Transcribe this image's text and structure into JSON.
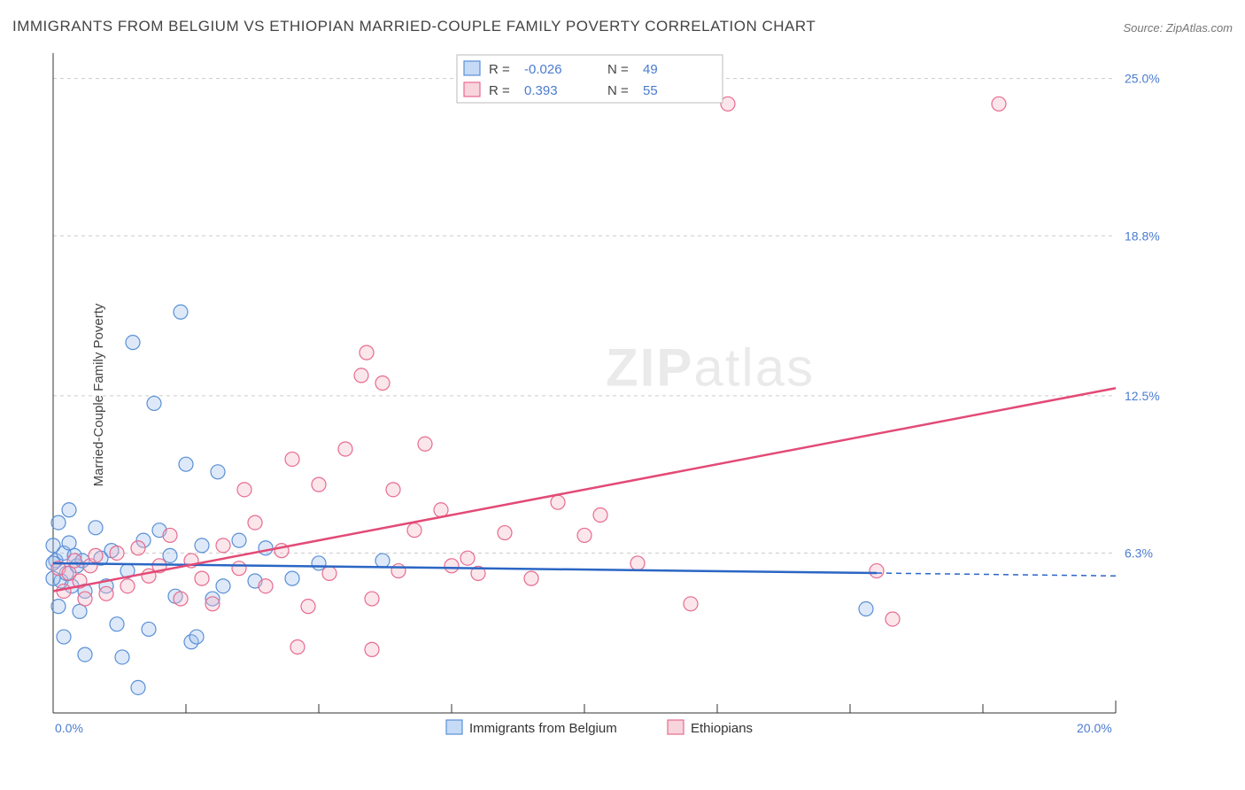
{
  "title": "IMMIGRANTS FROM BELGIUM VS ETHIOPIAN MARRIED-COUPLE FAMILY POVERTY CORRELATION CHART",
  "source_label": "Source: ZipAtlas.com",
  "ylabel": "Married-Couple Family Poverty",
  "watermark": "ZIPatlas",
  "chart": {
    "type": "scatter",
    "xlim": [
      0,
      20
    ],
    "ylim": [
      0,
      26
    ],
    "background_color": "#ffffff",
    "grid_color": "#cccccc",
    "axis_color": "#333333",
    "tick_label_color": "#4a7bd0",
    "x_ticks_major": [
      0,
      20
    ],
    "x_ticks_major_labels": [
      "0.0%",
      "20.0%"
    ],
    "x_ticks_minor": [
      2.5,
      5.0,
      7.5,
      10.0,
      12.5,
      15.0,
      17.5
    ],
    "y_ticks_major": [
      6.3,
      12.5,
      18.8,
      25.0
    ],
    "y_ticks_major_labels": [
      "6.3%",
      "12.5%",
      "18.8%",
      "25.0%"
    ],
    "marker_radius": 8,
    "marker_fill_opacity": 0.35,
    "marker_stroke_width": 1.2,
    "series": [
      {
        "id": "belgium",
        "label": "Immigrants from Belgium",
        "color_fill": "#9fc1ee",
        "color_stroke": "#5a8fd6",
        "trend_color": "#2b66c4",
        "R": "-0.026",
        "N": "49",
        "trend": {
          "y_at_x0": 5.9,
          "y_at_xmax": 5.4,
          "solid_until_x": 15.5
        },
        "points": [
          [
            0.05,
            6.0
          ],
          [
            0.1,
            7.5
          ],
          [
            0.15,
            5.2
          ],
          [
            0.2,
            6.3
          ],
          [
            0.25,
            5.5
          ],
          [
            0.3,
            8.0
          ],
          [
            0.35,
            5.0
          ],
          [
            0.4,
            6.2
          ],
          [
            0.45,
            5.8
          ],
          [
            0.5,
            4.0
          ],
          [
            0.55,
            6.0
          ],
          [
            0.6,
            4.8
          ],
          [
            0.1,
            4.2
          ],
          [
            0.2,
            3.0
          ],
          [
            0.8,
            7.3
          ],
          [
            0.9,
            6.1
          ],
          [
            1.0,
            5.0
          ],
          [
            1.1,
            6.4
          ],
          [
            1.2,
            3.5
          ],
          [
            1.3,
            2.2
          ],
          [
            1.4,
            5.6
          ],
          [
            1.5,
            14.6
          ],
          [
            1.6,
            1.0
          ],
          [
            1.7,
            6.8
          ],
          [
            1.8,
            3.3
          ],
          [
            1.9,
            12.2
          ],
          [
            2.0,
            7.2
          ],
          [
            2.2,
            6.2
          ],
          [
            2.3,
            4.6
          ],
          [
            2.4,
            15.8
          ],
          [
            2.5,
            9.8
          ],
          [
            2.6,
            2.8
          ],
          [
            2.7,
            3.0
          ],
          [
            2.8,
            6.6
          ],
          [
            3.0,
            4.5
          ],
          [
            3.1,
            9.5
          ],
          [
            3.2,
            5.0
          ],
          [
            3.5,
            6.8
          ],
          [
            3.8,
            5.2
          ],
          [
            4.0,
            6.5
          ],
          [
            4.5,
            5.3
          ],
          [
            5.0,
            5.9
          ],
          [
            6.2,
            6.0
          ],
          [
            0.0,
            5.9
          ],
          [
            0.0,
            6.6
          ],
          [
            0.0,
            5.3
          ],
          [
            0.3,
            6.7
          ],
          [
            15.3,
            4.1
          ],
          [
            0.6,
            2.3
          ]
        ]
      },
      {
        "id": "ethiopians",
        "label": "Ethiopians",
        "color_fill": "#f3b7c6",
        "color_stroke": "#e76b8f",
        "trend_color": "#e34a76",
        "R": "0.393",
        "N": "55",
        "trend": {
          "y_at_x0": 4.8,
          "y_at_xmax": 12.8,
          "solid_until_x": 20
        },
        "points": [
          [
            0.1,
            5.7
          ],
          [
            0.2,
            4.8
          ],
          [
            0.3,
            5.5
          ],
          [
            0.4,
            6.0
          ],
          [
            0.5,
            5.2
          ],
          [
            0.6,
            4.5
          ],
          [
            0.7,
            5.8
          ],
          [
            0.8,
            6.2
          ],
          [
            1.0,
            4.7
          ],
          [
            1.2,
            6.3
          ],
          [
            1.4,
            5.0
          ],
          [
            1.6,
            6.5
          ],
          [
            1.8,
            5.4
          ],
          [
            2.0,
            5.8
          ],
          [
            2.2,
            7.0
          ],
          [
            2.4,
            4.5
          ],
          [
            2.6,
            6.0
          ],
          [
            2.8,
            5.3
          ],
          [
            3.0,
            4.3
          ],
          [
            3.2,
            6.6
          ],
          [
            3.5,
            5.7
          ],
          [
            3.8,
            7.5
          ],
          [
            4.0,
            5.0
          ],
          [
            4.3,
            6.4
          ],
          [
            4.5,
            10.0
          ],
          [
            4.8,
            4.2
          ],
          [
            5.0,
            9.0
          ],
          [
            5.2,
            5.5
          ],
          [
            5.5,
            10.4
          ],
          [
            5.8,
            13.3
          ],
          [
            5.9,
            14.2
          ],
          [
            6.0,
            4.5
          ],
          [
            6.0,
            2.5
          ],
          [
            6.2,
            13.0
          ],
          [
            6.5,
            5.6
          ],
          [
            6.8,
            7.2
          ],
          [
            7.0,
            10.6
          ],
          [
            7.3,
            8.0
          ],
          [
            7.5,
            5.8
          ],
          [
            7.8,
            6.1
          ],
          [
            8.0,
            5.5
          ],
          [
            8.5,
            7.1
          ],
          [
            9.0,
            5.3
          ],
          [
            9.5,
            8.3
          ],
          [
            10.0,
            7.0
          ],
          [
            10.3,
            7.8
          ],
          [
            11.0,
            5.9
          ],
          [
            12.0,
            4.3
          ],
          [
            12.7,
            24.0
          ],
          [
            15.5,
            5.6
          ],
          [
            15.8,
            3.7
          ],
          [
            17.8,
            24.0
          ],
          [
            4.6,
            2.6
          ],
          [
            6.4,
            8.8
          ],
          [
            3.6,
            8.8
          ]
        ]
      }
    ],
    "legend_top": {
      "r_label": "R =",
      "n_label": "N =",
      "value_color": "#4a7bd0",
      "label_color": "#444444",
      "border_color": "#bbbbbb"
    }
  }
}
